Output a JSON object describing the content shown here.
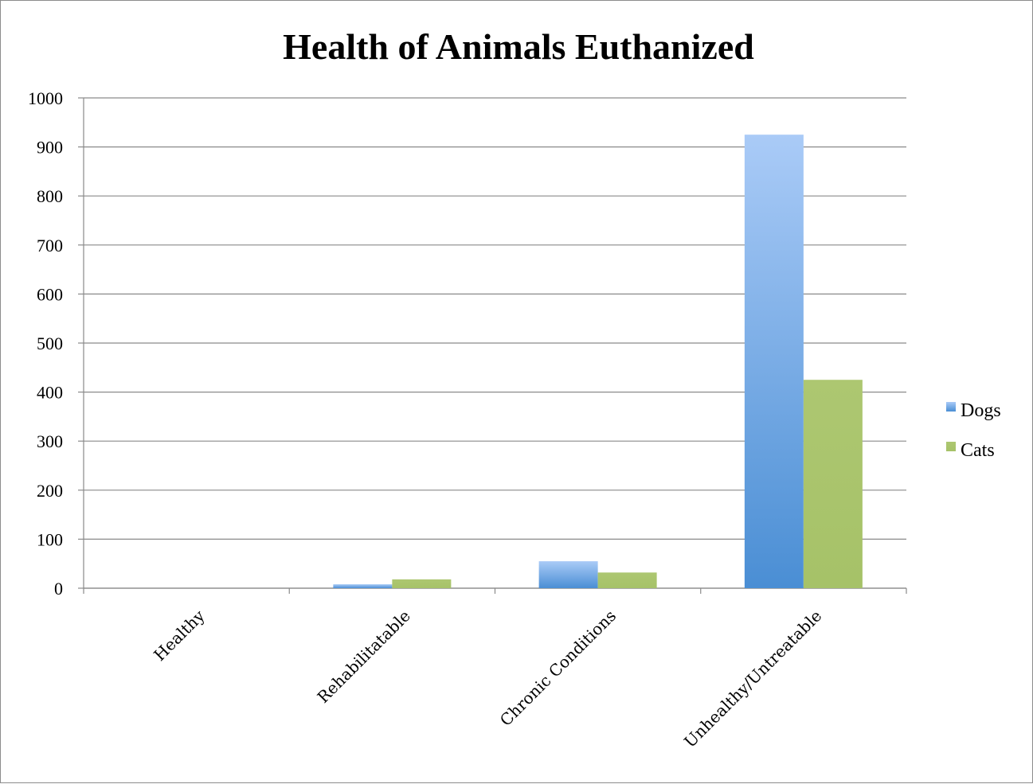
{
  "chart_data": {
    "type": "bar",
    "title": "Health of Animals Euthanized",
    "xlabel": "",
    "ylabel": "",
    "categories": [
      "Healthy",
      "Rehabilitatable",
      "Chronic Conditions",
      "Unhealthy/Untreatable"
    ],
    "series": [
      {
        "name": "Dogs",
        "values": [
          0,
          8,
          55,
          925
        ],
        "color": "#4f8fd3"
      },
      {
        "name": "Cats",
        "values": [
          0,
          18,
          32,
          425
        ],
        "color": "#a9c46c"
      }
    ],
    "ylim": [
      0,
      1000
    ],
    "yticks": [
      "0",
      "100",
      "200",
      "300",
      "400",
      "500",
      "600",
      "700",
      "800",
      "900",
      "1000"
    ],
    "grid": true,
    "legend_position": "right"
  }
}
